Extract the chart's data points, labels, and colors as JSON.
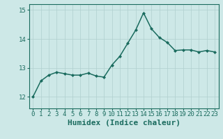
{
  "x": [
    0,
    1,
    2,
    3,
    4,
    5,
    6,
    7,
    8,
    9,
    10,
    11,
    12,
    13,
    14,
    15,
    16,
    17,
    18,
    19,
    20,
    21,
    22,
    23
  ],
  "y": [
    12.0,
    12.55,
    12.75,
    12.85,
    12.8,
    12.75,
    12.75,
    12.82,
    12.72,
    12.68,
    13.1,
    13.4,
    13.85,
    14.3,
    14.9,
    14.35,
    14.05,
    13.88,
    13.6,
    13.62,
    13.62,
    13.55,
    13.6,
    13.55
  ],
  "line_color": "#1a6b5e",
  "marker": "D",
  "marker_size": 2.0,
  "bg_color": "#cde8e7",
  "grid_color": "#b0cfce",
  "xlabel": "Humidex (Indice chaleur)",
  "xlabel_fontsize": 8,
  "yticks": [
    12,
    13,
    14,
    15
  ],
  "ylim": [
    11.6,
    15.2
  ],
  "xlim": [
    -0.5,
    23.5
  ],
  "xtick_labels": [
    "0",
    "1",
    "2",
    "3",
    "4",
    "5",
    "6",
    "7",
    "8",
    "9",
    "10",
    "11",
    "12",
    "13",
    "14",
    "15",
    "16",
    "17",
    "18",
    "19",
    "20",
    "21",
    "22",
    "23"
  ],
  "tick_fontsize": 6.5,
  "line_width": 1.1,
  "grid_linewidth": 0.5
}
